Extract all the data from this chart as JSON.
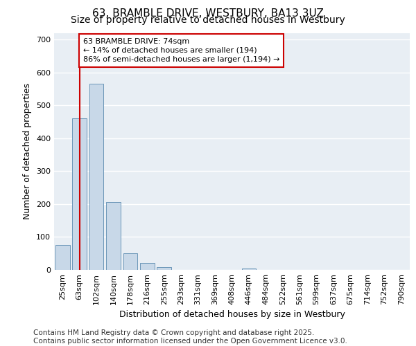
{
  "title_line1": "63, BRAMBLE DRIVE, WESTBURY, BA13 3UZ",
  "title_line2": "Size of property relative to detached houses in Westbury",
  "xlabel": "Distribution of detached houses by size in Westbury",
  "ylabel": "Number of detached properties",
  "footnote": "Contains HM Land Registry data © Crown copyright and database right 2025.\nContains public sector information licensed under the Open Government Licence v3.0.",
  "categories": [
    "25sqm",
    "63sqm",
    "102sqm",
    "140sqm",
    "178sqm",
    "216sqm",
    "255sqm",
    "293sqm",
    "331sqm",
    "369sqm",
    "408sqm",
    "446sqm",
    "484sqm",
    "522sqm",
    "561sqm",
    "599sqm",
    "637sqm",
    "675sqm",
    "714sqm",
    "752sqm",
    "790sqm"
  ],
  "values": [
    75,
    460,
    565,
    205,
    50,
    20,
    8,
    0,
    0,
    0,
    0,
    5,
    0,
    0,
    0,
    0,
    0,
    0,
    0,
    0,
    0
  ],
  "bar_color": "#c8d8e8",
  "bar_edge_color": "#5a8ab0",
  "vline_color": "#cc0000",
  "annotation_box_text": "63 BRAMBLE DRIVE: 74sqm\n← 14% of detached houses are smaller (194)\n86% of semi-detached houses are larger (1,194) →",
  "ylim": [
    0,
    720
  ],
  "yticks": [
    0,
    100,
    200,
    300,
    400,
    500,
    600,
    700
  ],
  "bg_color": "#e8eef4",
  "grid_color": "#ffffff",
  "title_fontsize": 11,
  "subtitle_fontsize": 10,
  "axis_label_fontsize": 9,
  "tick_fontsize": 8,
  "annotation_fontsize": 8,
  "footnote_fontsize": 7.5
}
